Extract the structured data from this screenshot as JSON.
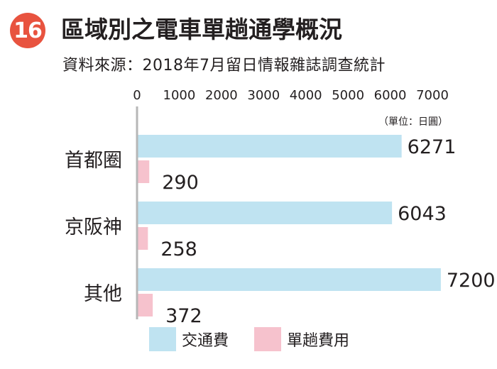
{
  "header": {
    "badge": "16",
    "title": "區域別之電車單趟通學概況",
    "subtitle": "資料來源：2018年7月留日情報雜誌調查統計"
  },
  "colors": {
    "badge": "#e8533f",
    "series_1": "#bfe3f1",
    "series_2": "#f6c2cd",
    "axis": "#b7b7b7",
    "text": "#231f20"
  },
  "chart_data": {
    "type": "bar",
    "orientation": "horizontal",
    "categories": [
      "首都圈",
      "京阪神",
      "其他"
    ],
    "series": [
      {
        "name": "交通費",
        "values": [
          6271,
          6043,
          7200
        ]
      },
      {
        "name": "單趟費用",
        "values": [
          290,
          258,
          372
        ]
      }
    ],
    "x_ticks": [
      "0",
      "1000",
      "2000",
      "3000",
      "4000",
      "5000",
      "6000",
      "7000"
    ],
    "xlim": [
      0,
      7000
    ],
    "unit_note": "（單位：日圓）",
    "axis_position": "top",
    "grid": false,
    "legend_position": "bottom-left"
  }
}
